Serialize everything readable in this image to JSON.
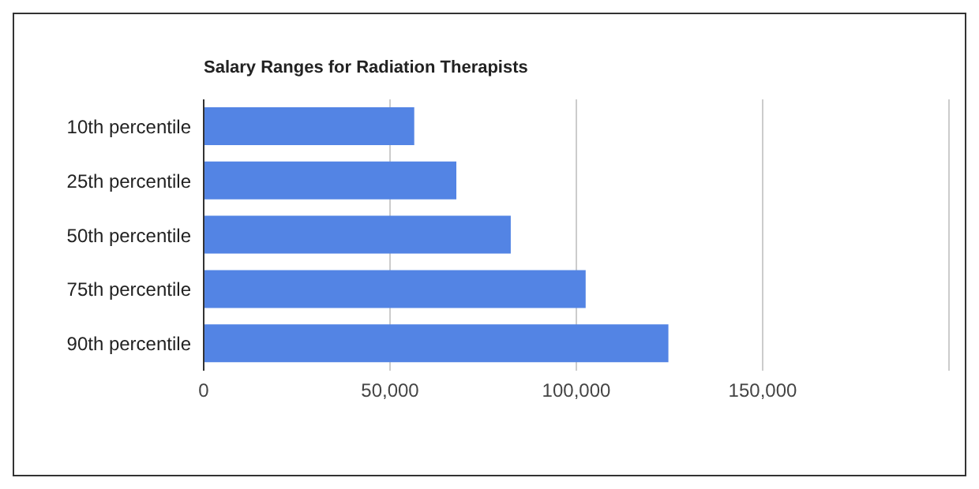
{
  "chart_data": {
    "type": "bar",
    "orientation": "horizontal",
    "title": "Salary Ranges for Radiation Therapists",
    "categories": [
      "10th percentile",
      "25th percentile",
      "50th percentile",
      "75th percentile",
      "90th percentile"
    ],
    "values": [
      56500,
      67800,
      82400,
      102500,
      124700
    ],
    "color": "#5384e4",
    "xlim": [
      0,
      200000
    ],
    "xticks": [
      {
        "value": 0,
        "label": "0"
      },
      {
        "value": 50000,
        "label": "50,000"
      },
      {
        "value": 100000,
        "label": "100,000"
      },
      {
        "value": 150000,
        "label": "150,000"
      }
    ],
    "grid": "x"
  }
}
